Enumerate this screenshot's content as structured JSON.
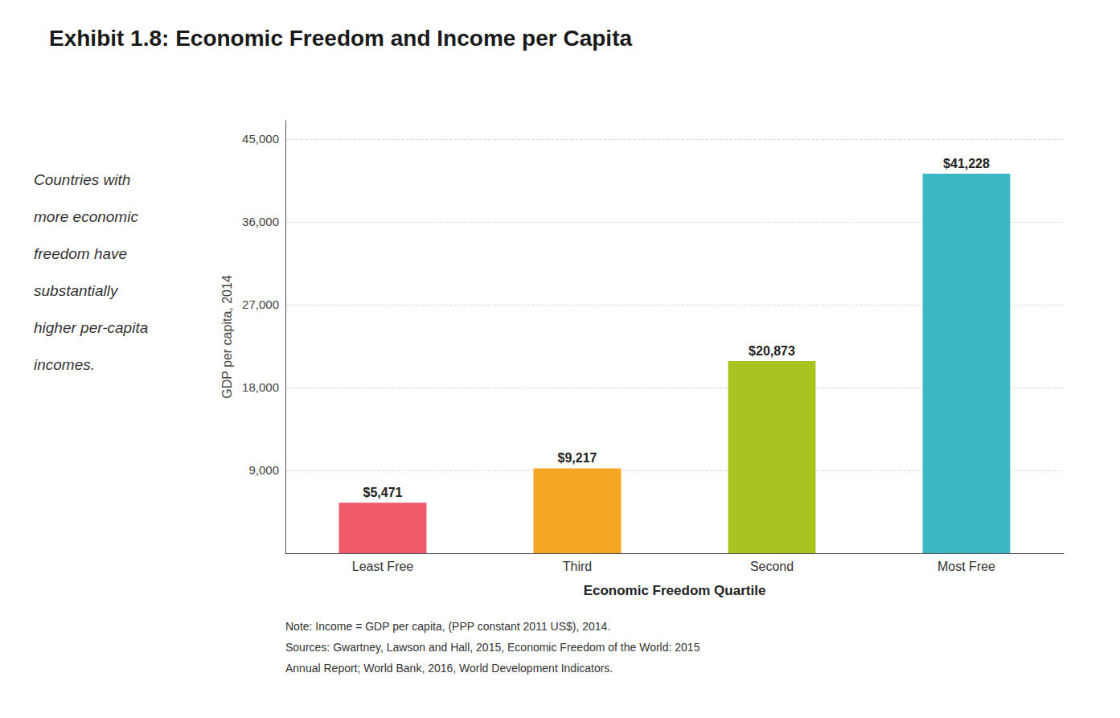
{
  "chart_data": {
    "type": "bar",
    "title": "Exhibit 1.8: Economic Freedom and Income per Capita",
    "categories": [
      "Least Free",
      "Third",
      "Second",
      "Most Free"
    ],
    "values": [
      5471,
      9217,
      20873,
      41228
    ],
    "value_labels": [
      "$5,471",
      "$9,217",
      "$20,873",
      "$41,228"
    ],
    "data_labels": true,
    "colors": [
      "#F05A6A",
      "#F5A623",
      "#A8C421",
      "#3BB8C3"
    ],
    "xlabel": "Economic Freedom Quartile",
    "ylabel": "GDP per capita, 2014",
    "ylim": [
      0,
      47000
    ],
    "yticks": [
      {
        "value": 9000,
        "label": "9,000"
      },
      {
        "value": 18000,
        "label": "18,000"
      },
      {
        "value": 27000,
        "label": "27,000"
      },
      {
        "value": 36000,
        "label": "36,000"
      },
      {
        "value": 45000,
        "label": "45,000"
      }
    ],
    "grid": true,
    "annotations": [
      "Countries with",
      "more economic",
      "freedom have",
      "substantially",
      "higher per-capita",
      "incomes."
    ],
    "notes": [
      "Note: Income = GDP per capita, (PPP constant 2011 US$), 2014.",
      "Sources: Gwartney, Lawson and Hall, 2015, Economic Freedom of the World: 2015",
      "Annual Report; World Bank, 2016, World Development Indicators."
    ]
  }
}
